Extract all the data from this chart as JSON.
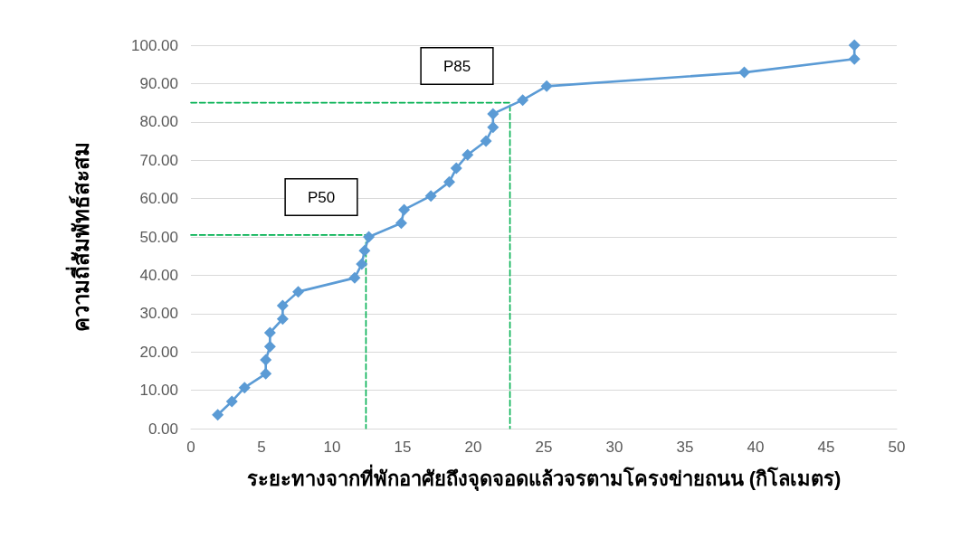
{
  "chart_data": {
    "type": "line",
    "xlabel": "ระยะทางจากที่พักอาศัยถึงจุดจอดแล้วจรตามโครงข่ายถนน (กิโลเมตร)",
    "ylabel": "ความถี่สัมพัทธ์สะสม",
    "xlim": [
      0,
      50
    ],
    "xticks": [
      0,
      5,
      10,
      15,
      20,
      25,
      30,
      35,
      40,
      45,
      50
    ],
    "ylim": [
      0,
      100
    ],
    "yticks": [
      {
        "value": 0,
        "label": "0.00"
      },
      {
        "value": 10,
        "label": "10.00"
      },
      {
        "value": 20,
        "label": "20.00"
      },
      {
        "value": 30,
        "label": "30.00"
      },
      {
        "value": 40,
        "label": "40.00"
      },
      {
        "value": 50,
        "label": "50.00"
      },
      {
        "value": 60,
        "label": "60.00"
      },
      {
        "value": 70,
        "label": "70.00"
      },
      {
        "value": 80,
        "label": "80.00"
      },
      {
        "value": 90,
        "label": "90.00"
      },
      {
        "value": 100,
        "label": "100.00"
      }
    ],
    "grid": "y",
    "series": [
      {
        "color": "#5b9bd5",
        "marker": "diamond",
        "line_style": "solid",
        "x": [
          1.9,
          2.9,
          3.8,
          5.3,
          5.3,
          5.6,
          5.6,
          6.5,
          6.5,
          7.6,
          11.6,
          12.1,
          12.3,
          12.6,
          14.9,
          15.1,
          17.0,
          18.3,
          18.8,
          19.6,
          20.9,
          21.4,
          21.4,
          23.5,
          25.2,
          39.2,
          47.0,
          47.0
        ],
        "values": [
          3.6,
          7.1,
          10.7,
          14.3,
          17.9,
          21.4,
          25.0,
          28.6,
          32.1,
          35.7,
          39.3,
          42.9,
          46.4,
          50.0,
          53.6,
          57.1,
          60.7,
          64.3,
          67.9,
          71.4,
          75.0,
          78.6,
          82.1,
          85.7,
          89.3,
          92.9,
          96.4,
          100.0
        ]
      },
      {
        "color": "#00b050",
        "marker": "none",
        "line_style": "dashed",
        "x": [
          0,
          12.4,
          12.4
        ],
        "values": [
          50.5,
          50.5,
          0
        ]
      },
      {
        "color": "#00b050",
        "marker": "none",
        "line_style": "dashed",
        "x": [
          0,
          22.6,
          22.6
        ],
        "values": [
          85,
          85,
          0
        ]
      }
    ],
    "annotations": [
      "P50",
      "P85"
    ]
  }
}
